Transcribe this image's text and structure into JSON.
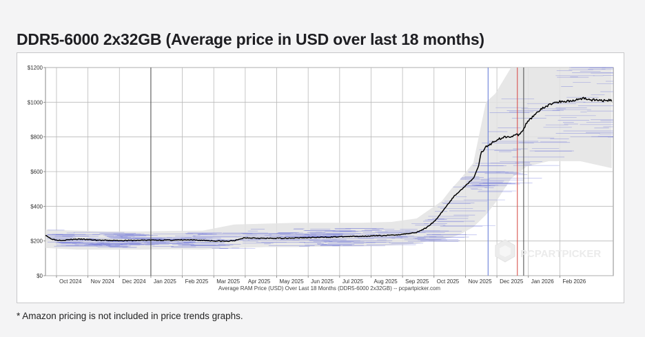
{
  "page": {
    "title": "DDR5-6000 2x32GB (Average price in USD over last 18 months)",
    "footnote": "* Amazon pricing is not included in price trends graphs."
  },
  "chart_data": {
    "type": "line",
    "title": "DDR5-6000 2x32GB (Average price in USD over last 18 months)",
    "xlabel": "Average RAM Price (USD) Over Last 18 Months (DDR5-6000 2x32GB) -- pcpartpicker.com",
    "ylabel": "",
    "ylim": [
      0,
      1200
    ],
    "xlim": [
      0,
      18.05
    ],
    "grid": true,
    "watermark": "PCPARTPICKER",
    "y_ticks": [
      {
        "value": 0,
        "label": "$0"
      },
      {
        "value": 200,
        "label": "$200"
      },
      {
        "value": 400,
        "label": "$400"
      },
      {
        "value": 600,
        "label": "$600"
      },
      {
        "value": 800,
        "label": "$800"
      },
      {
        "value": 1000,
        "label": "$1000"
      },
      {
        "value": 1200,
        "label": "$1200"
      }
    ],
    "x_ticks": [
      {
        "value": 0.35,
        "label": "Oct 2024"
      },
      {
        "value": 1.35,
        "label": "Nov 2024"
      },
      {
        "value": 2.35,
        "label": "Dec 2024"
      },
      {
        "value": 3.35,
        "label": "Jan 2025"
      },
      {
        "value": 4.35,
        "label": "Feb 2025"
      },
      {
        "value": 5.35,
        "label": "Mar 2025"
      },
      {
        "value": 6.35,
        "label": "Apr 2025"
      },
      {
        "value": 7.35,
        "label": "May 2025"
      },
      {
        "value": 8.35,
        "label": "Jun 2025"
      },
      {
        "value": 9.35,
        "label": "Jul 2025"
      },
      {
        "value": 10.35,
        "label": "Aug 2025"
      },
      {
        "value": 11.35,
        "label": "Sep 2025"
      },
      {
        "value": 12.35,
        "label": "Oct 2025"
      },
      {
        "value": 13.35,
        "label": "Nov 2025"
      },
      {
        "value": 14.35,
        "label": "Dec 2025"
      },
      {
        "value": 15.35,
        "label": "Jan 2026"
      },
      {
        "value": 16.35,
        "label": "Feb 2026"
      }
    ],
    "markers": [
      {
        "name": "year-marker-2025",
        "x": 3.35,
        "color": "#555555"
      },
      {
        "name": "blue-event-line",
        "x": 14.07,
        "color": "#6a7fd8"
      },
      {
        "name": "red-event-line",
        "x": 15.0,
        "color": "#d9534f"
      },
      {
        "name": "year-marker-2026",
        "x": 15.2,
        "color": "#555555"
      }
    ],
    "series": [
      {
        "name": "Average price",
        "color": "#000000",
        "x": [
          0,
          0.15,
          0.35,
          0.6,
          0.9,
          1.2,
          1.6,
          2.0,
          2.4,
          2.8,
          3.2,
          3.6,
          4.0,
          4.5,
          5.0,
          5.4,
          5.8,
          6.1,
          6.3,
          6.6,
          7.0,
          7.5,
          8.0,
          8.5,
          9.0,
          9.5,
          10.0,
          10.5,
          11.0,
          11.4,
          11.8,
          12.1,
          12.4,
          12.7,
          13.0,
          13.3,
          13.6,
          13.75,
          13.85,
          14.0,
          14.3,
          14.6,
          14.9,
          15.1,
          15.3,
          15.6,
          15.9,
          16.2,
          16.5,
          16.8,
          17.1,
          17.3,
          17.6,
          18.0
        ],
        "values": [
          235,
          215,
          205,
          205,
          210,
          210,
          205,
          203,
          203,
          203,
          205,
          205,
          205,
          206,
          204,
          200,
          198,
          205,
          218,
          218,
          215,
          216,
          218,
          220,
          222,
          225,
          227,
          230,
          233,
          240,
          250,
          275,
          320,
          390,
          460,
          510,
          560,
          620,
          710,
          740,
          780,
          800,
          808,
          815,
          880,
          940,
          975,
          1000,
          1005,
          1010,
          1025,
          1015,
          1010,
          1010
        ]
      },
      {
        "name": "Price range (max)",
        "color": "#e3e3e3",
        "x": [
          0,
          1,
          2,
          3,
          4,
          5,
          6,
          7,
          8,
          9,
          10,
          11,
          11.8,
          12.2,
          12.6,
          12.9,
          13.2,
          13.6,
          14.0,
          14.3,
          14.8,
          15.3,
          16.0,
          17.0,
          18.0
        ],
        "values": [
          265,
          260,
          255,
          255,
          258,
          260,
          295,
          300,
          305,
          305,
          305,
          310,
          330,
          380,
          430,
          500,
          560,
          650,
          1000,
          1050,
          1200,
          1200,
          1200,
          1200,
          1200
        ]
      },
      {
        "name": "Price range (min)",
        "color": "#e3e3e3",
        "x": [
          0,
          1,
          2,
          3,
          4,
          5,
          6,
          7,
          8,
          9,
          10,
          11,
          11.8,
          12.2,
          12.6,
          12.9,
          13.2,
          13.6,
          14.0,
          14.3,
          14.8,
          15.3,
          16.0,
          17.0,
          18.0
        ],
        "values": [
          160,
          150,
          150,
          150,
          152,
          150,
          160,
          165,
          165,
          168,
          170,
          175,
          185,
          200,
          210,
          220,
          240,
          280,
          350,
          420,
          560,
          630,
          660,
          660,
          620
        ]
      }
    ]
  }
}
